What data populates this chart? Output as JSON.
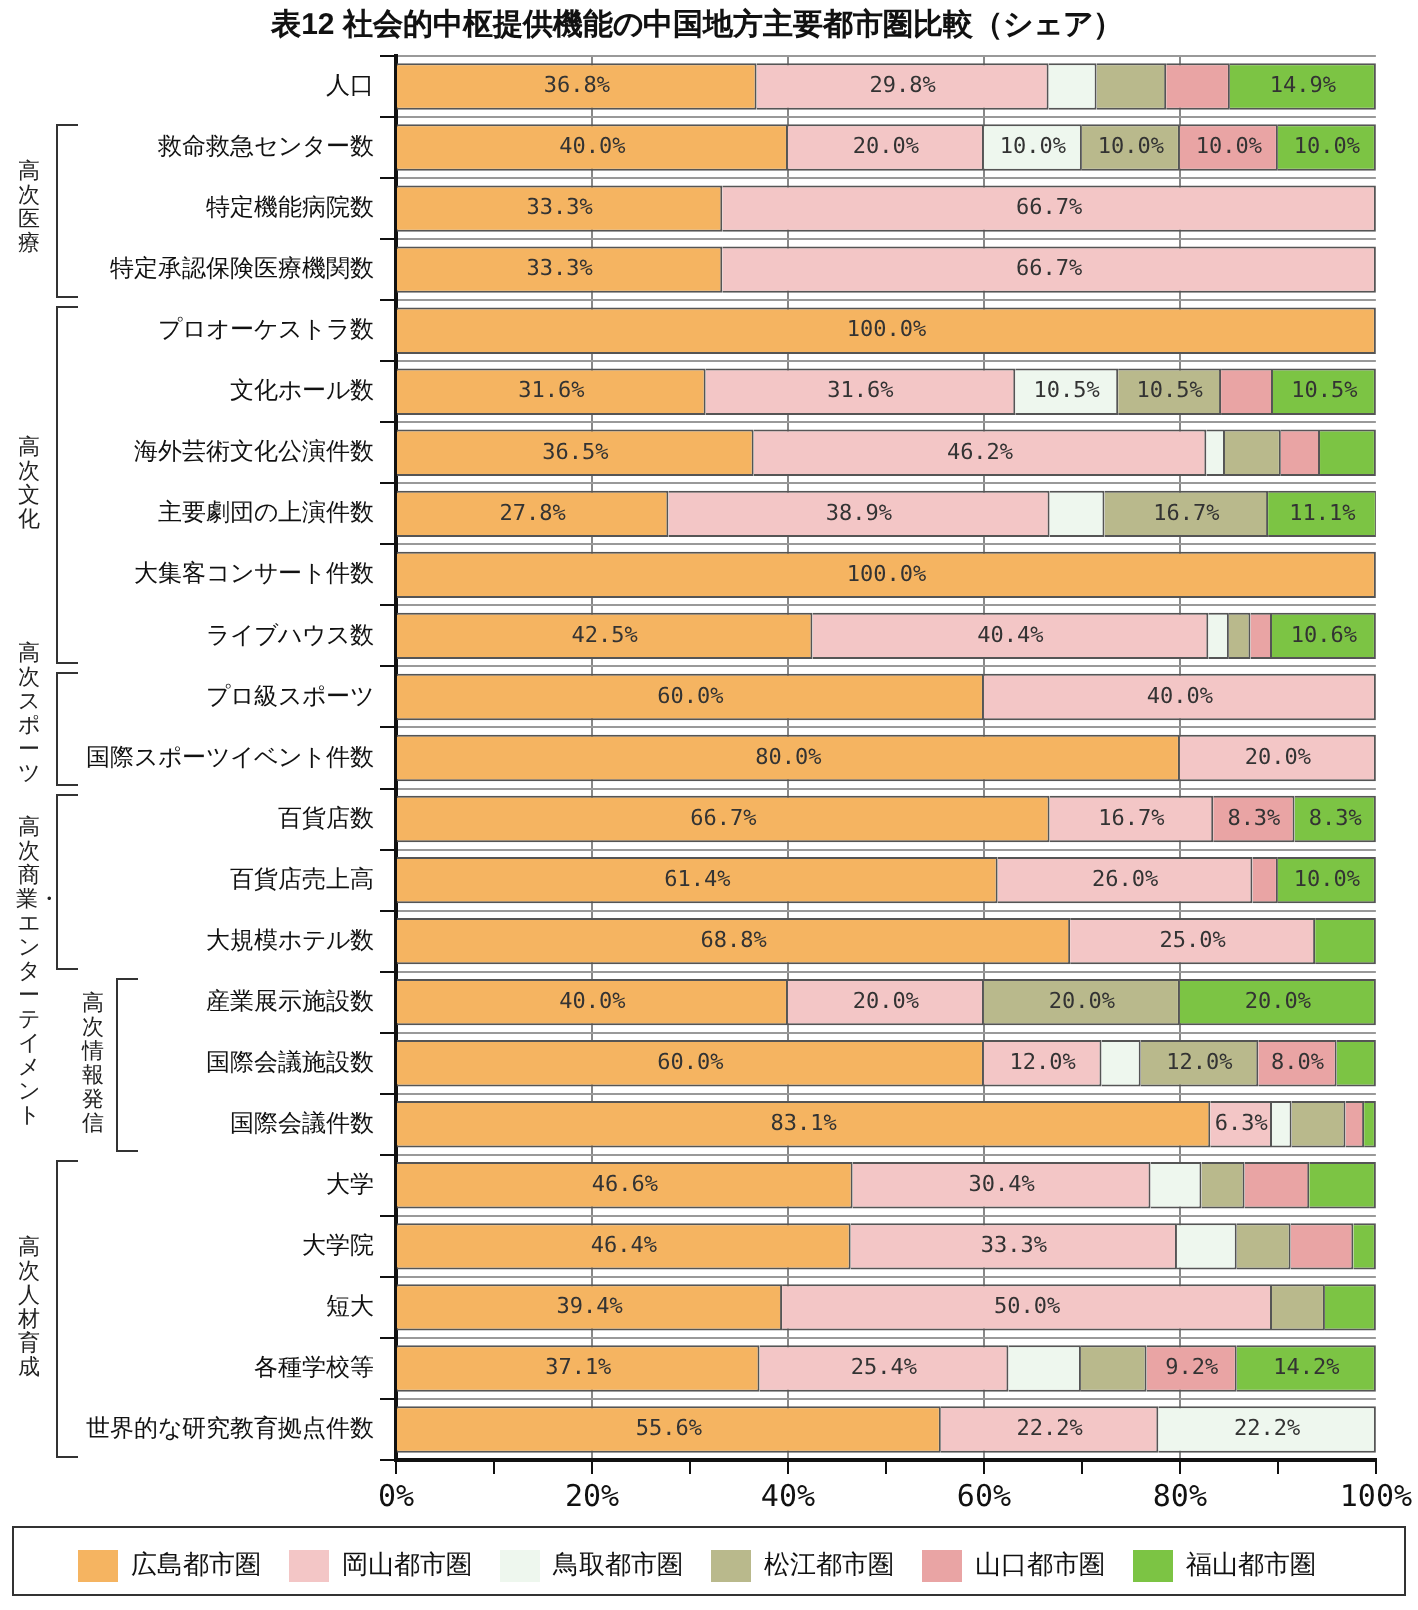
{
  "chart_data": {
    "type": "bar",
    "orientation": "horizontal",
    "stacked": true,
    "title": "表12 社会的中枢提供機能の中国地方主要都市圏比較（シェア）",
    "categories": [
      "人口",
      "救命救急センター数",
      "特定機能病院数",
      "特定承認保険医療機関数",
      "プロオーケストラ数",
      "文化ホール数",
      "海外芸術文化公演件数",
      "主要劇団の上演件数",
      "大集客コンサート件数",
      "ライブハウス数",
      "プロ級スポーツ",
      "国際スポーツイベント件数",
      "百貨店数",
      "百貨店売上高",
      "大規模ホテル数",
      "産業展示施設数",
      "国際会議施設数",
      "国際会議件数",
      "大学",
      "大学院",
      "短大",
      "各種学校等",
      "世界的な研究教育拠点件数"
    ],
    "series": [
      {
        "name": "広島都市圏",
        "color": "#f5b461",
        "values": [
          36.8,
          40.0,
          33.3,
          33.3,
          100.0,
          31.6,
          36.5,
          27.8,
          100.0,
          42.5,
          60.0,
          80.0,
          66.7,
          61.4,
          68.8,
          40.0,
          60.0,
          83.1,
          46.6,
          46.4,
          39.4,
          37.1,
          55.6
        ],
        "value_labels": [
          "36.8%",
          "40.0%",
          "33.3%",
          "33.3%",
          "100.0%",
          "31.6%",
          "36.5%",
          "27.8%",
          "100.0%",
          "42.5%",
          "60.0%",
          "80.0%",
          "66.7%",
          "61.4%",
          "68.8%",
          "40.0%",
          "60.0%",
          "83.1%",
          "46.6%",
          "46.4%",
          "39.4%",
          "37.1%",
          "55.6%"
        ]
      },
      {
        "name": "岡山都市圏",
        "color": "#f3c6c6",
        "values": [
          29.8,
          20.0,
          66.7,
          66.7,
          null,
          31.6,
          46.2,
          38.9,
          null,
          40.4,
          40.0,
          20.0,
          16.7,
          26.0,
          25.0,
          20.0,
          12.0,
          6.3,
          30.4,
          33.3,
          50.0,
          25.4,
          22.2
        ],
        "value_labels": [
          "29.8%",
          "20.0%",
          "66.7%",
          "66.7%",
          null,
          "31.6%",
          "46.2%",
          "38.9%",
          null,
          "40.4%",
          "40.0%",
          "20.0%",
          "16.7%",
          "26.0%",
          "25.0%",
          "20.0%",
          "12.0%",
          "6.3%",
          "30.4%",
          "33.3%",
          "50.0%",
          "25.4%",
          "22.2%"
        ]
      },
      {
        "name": "鳥取都市圏",
        "color": "#eef7ee",
        "values": [
          4.9,
          10.0,
          null,
          null,
          null,
          10.5,
          1.9,
          5.6,
          null,
          2.1,
          null,
          null,
          null,
          null,
          null,
          null,
          4.0,
          2.0,
          5.2,
          6.1,
          null,
          7.4,
          22.2
        ],
        "value_labels": [
          null,
          "10.0%",
          null,
          null,
          null,
          "10.5%",
          null,
          null,
          null,
          null,
          null,
          null,
          null,
          null,
          null,
          null,
          null,
          null,
          null,
          null,
          null,
          null,
          "22.2%"
        ]
      },
      {
        "name": "松江都市圏",
        "color": "#b9b98c",
        "values": [
          7.1,
          10.0,
          null,
          null,
          null,
          10.5,
          5.7,
          16.7,
          null,
          2.2,
          null,
          null,
          null,
          null,
          null,
          20.0,
          12.0,
          5.5,
          4.4,
          5.5,
          5.4,
          6.7,
          null
        ],
        "value_labels": [
          null,
          "10.0%",
          null,
          null,
          null,
          "10.5%",
          null,
          "16.7%",
          null,
          null,
          null,
          null,
          null,
          null,
          null,
          "20.0%",
          "12.0%",
          null,
          null,
          null,
          null,
          null,
          null
        ]
      },
      {
        "name": "山口都市圏",
        "color": "#e9a4a4",
        "values": [
          6.5,
          10.0,
          null,
          null,
          null,
          5.3,
          4.0,
          null,
          null,
          2.2,
          null,
          null,
          8.3,
          2.6,
          null,
          null,
          8.0,
          1.9,
          6.6,
          6.4,
          null,
          9.2,
          null
        ],
        "value_labels": [
          null,
          "10.0%",
          null,
          null,
          null,
          null,
          null,
          null,
          null,
          null,
          null,
          null,
          "8.3%",
          null,
          null,
          null,
          "8.0%",
          null,
          null,
          null,
          null,
          "9.2%",
          null
        ]
      },
      {
        "name": "福山都市圏",
        "color": "#7cc444",
        "values": [
          14.9,
          10.0,
          null,
          null,
          null,
          10.5,
          5.7,
          11.1,
          null,
          10.6,
          null,
          null,
          8.3,
          10.0,
          6.2,
          20.0,
          4.0,
          1.2,
          6.8,
          2.3,
          5.2,
          14.2,
          null
        ],
        "value_labels": [
          "14.9%",
          "10.0%",
          null,
          null,
          null,
          "10.5%",
          null,
          "11.1%",
          null,
          "10.6%",
          null,
          null,
          "8.3%",
          "10.0%",
          null,
          "20.0%",
          null,
          null,
          null,
          null,
          null,
          "14.2%",
          null
        ]
      }
    ],
    "xlim": [
      0,
      100
    ],
    "xticks": [
      {
        "value": 0,
        "label": "0%"
      },
      {
        "value": 10,
        "label": null
      },
      {
        "value": 20,
        "label": "20%"
      },
      {
        "value": 30,
        "label": null
      },
      {
        "value": 40,
        "label": "40%"
      },
      {
        "value": 50,
        "label": null
      },
      {
        "value": 60,
        "label": "60%"
      },
      {
        "value": 70,
        "label": null
      },
      {
        "value": 80,
        "label": "80%"
      },
      {
        "value": 90,
        "label": null
      },
      {
        "value": 100,
        "label": "100%"
      }
    ],
    "grid": true,
    "legend": "bottom",
    "annotations": [
      "高次医療",
      "高次文化",
      "高次スポーツ",
      "高次商業・エンターテイメント",
      "高次情報発信",
      "高次人材育成"
    ]
  }
}
